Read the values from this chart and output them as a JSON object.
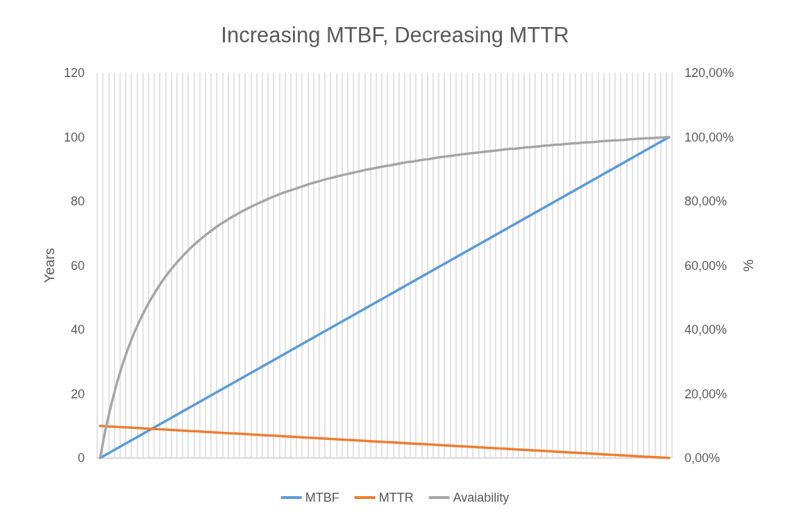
{
  "chart_data": {
    "type": "line",
    "title": "Increasing MTBF, Decreasing MTTR",
    "ylabel": "Years",
    "y2label": "%",
    "categories": [
      null,
      null,
      null,
      null,
      null,
      null,
      null,
      null,
      null,
      null,
      null,
      null,
      null,
      null,
      null,
      null,
      null,
      null,
      null,
      null,
      null,
      null,
      null,
      null,
      null,
      null,
      null,
      null,
      null,
      null,
      null,
      null,
      null,
      null,
      null,
      null,
      null,
      null,
      null,
      null,
      null,
      null,
      null,
      null,
      null,
      null,
      null,
      null,
      null,
      null,
      null,
      null,
      null,
      null,
      null,
      null,
      null,
      null,
      null,
      null,
      null,
      null,
      null,
      null,
      null,
      null,
      null,
      null,
      null,
      null,
      null,
      null,
      null,
      null,
      null,
      null,
      null,
      null,
      null,
      null,
      null,
      null,
      null,
      null,
      null,
      null,
      null,
      null,
      null,
      null,
      null,
      null,
      null,
      null,
      null,
      null,
      null,
      null,
      null,
      null,
      null
    ],
    "series": [
      {
        "name": "MTBF",
        "color": "#5b9bd5",
        "values": [
          0,
          1,
          2,
          3,
          4,
          5,
          6,
          7,
          8,
          9,
          10,
          11,
          12,
          13,
          14,
          15,
          16,
          17,
          18,
          19,
          20,
          21,
          22,
          23,
          24,
          25,
          26,
          27,
          28,
          29,
          30,
          31,
          32,
          33,
          34,
          35,
          36,
          37,
          38,
          39,
          40,
          41,
          42,
          43,
          44,
          45,
          46,
          47,
          48,
          49,
          50,
          51,
          52,
          53,
          54,
          55,
          56,
          57,
          58,
          59,
          60,
          61,
          62,
          63,
          64,
          65,
          66,
          67,
          68,
          69,
          70,
          71,
          72,
          73,
          74,
          75,
          76,
          77,
          78,
          79,
          80,
          81,
          82,
          83,
          84,
          85,
          86,
          87,
          88,
          89,
          90,
          91,
          92,
          93,
          94,
          95,
          96,
          97,
          98,
          99,
          100
        ]
      },
      {
        "name": "MTTR",
        "color": "#ed7d31",
        "values": [
          10,
          9.9,
          9.8,
          9.7,
          9.6,
          9.5,
          9.4,
          9.3,
          9.2,
          9.1,
          9,
          8.9,
          8.8,
          8.7,
          8.6,
          8.5,
          8.4,
          8.3,
          8.2,
          8.1,
          8,
          7.9,
          7.8,
          7.7,
          7.6,
          7.5,
          7.4,
          7.3,
          7.2,
          7.1,
          7,
          6.9,
          6.8,
          6.7,
          6.6,
          6.5,
          6.4,
          6.3,
          6.2,
          6.1,
          6,
          5.9,
          5.8,
          5.7,
          5.6,
          5.5,
          5.4,
          5.3,
          5.2,
          5.1,
          5,
          4.9,
          4.8,
          4.7,
          4.6,
          4.5,
          4.4,
          4.3,
          4.2,
          4.1,
          4,
          3.9,
          3.8,
          3.7,
          3.6,
          3.5,
          3.4,
          3.3,
          3.2,
          3.1,
          3,
          2.9,
          2.8,
          2.7,
          2.6,
          2.5,
          2.4,
          2.3,
          2.2,
          2.1,
          2,
          1.9,
          1.8,
          1.7,
          1.6,
          1.5,
          1.4,
          1.3,
          1.2,
          1.1,
          1,
          0.9,
          0.8,
          0.7,
          0.6,
          0.5,
          0.4,
          0.3,
          0.2,
          0.1,
          0
        ]
      },
      {
        "name": "Avaiability",
        "color": "#a5a5a5",
        "axis": "y2",
        "values": [
          0,
          9.2,
          16.9,
          23.6,
          29.4,
          34.5,
          39.0,
          42.9,
          46.5,
          49.7,
          52.6,
          55.3,
          57.7,
          59.9,
          61.9,
          63.8,
          65.6,
          67.2,
          68.7,
          70.1,
          71.4,
          72.7,
          73.8,
          74.9,
          75.9,
          76.9,
          77.8,
          78.7,
          79.5,
          80.3,
          81.1,
          81.8,
          82.5,
          83.1,
          83.7,
          84.3,
          84.9,
          85.5,
          86.0,
          86.5,
          87.0,
          87.4,
          87.9,
          88.3,
          88.7,
          89.1,
          89.5,
          89.9,
          90.2,
          90.6,
          90.9,
          91.2,
          91.5,
          91.9,
          92.2,
          92.4,
          92.7,
          93.0,
          93.2,
          93.5,
          93.8,
          94.0,
          94.2,
          94.5,
          94.7,
          94.9,
          95.1,
          95.3,
          95.5,
          95.7,
          95.9,
          96.1,
          96.3,
          96.4,
          96.6,
          96.8,
          96.9,
          97.1,
          97.3,
          97.4,
          97.6,
          97.7,
          97.9,
          98.0,
          98.1,
          98.3,
          98.4,
          98.5,
          98.7,
          98.8,
          98.9,
          99.0,
          99.1,
          99.3,
          99.4,
          99.5,
          99.6,
          99.7,
          99.8,
          99.9,
          100
        ]
      }
    ],
    "ylim": [
      0,
      120
    ],
    "yticks": [
      0,
      20,
      40,
      60,
      80,
      100,
      120
    ],
    "y2lim": [
      0,
      120
    ],
    "y2ticks": [
      {
        "value": 0,
        "label": "0,00%"
      },
      {
        "value": 20,
        "label": "20,00%"
      },
      {
        "value": 40,
        "label": "40,00%"
      },
      {
        "value": 60,
        "label": "60,00%"
      },
      {
        "value": 80,
        "label": "80,00%"
      },
      {
        "value": 100,
        "label": "100,00%"
      },
      {
        "value": 120,
        "label": "120,00%"
      }
    ],
    "grid": "x",
    "legend": "bottom",
    "marker": "none",
    "line_style": "solid"
  }
}
